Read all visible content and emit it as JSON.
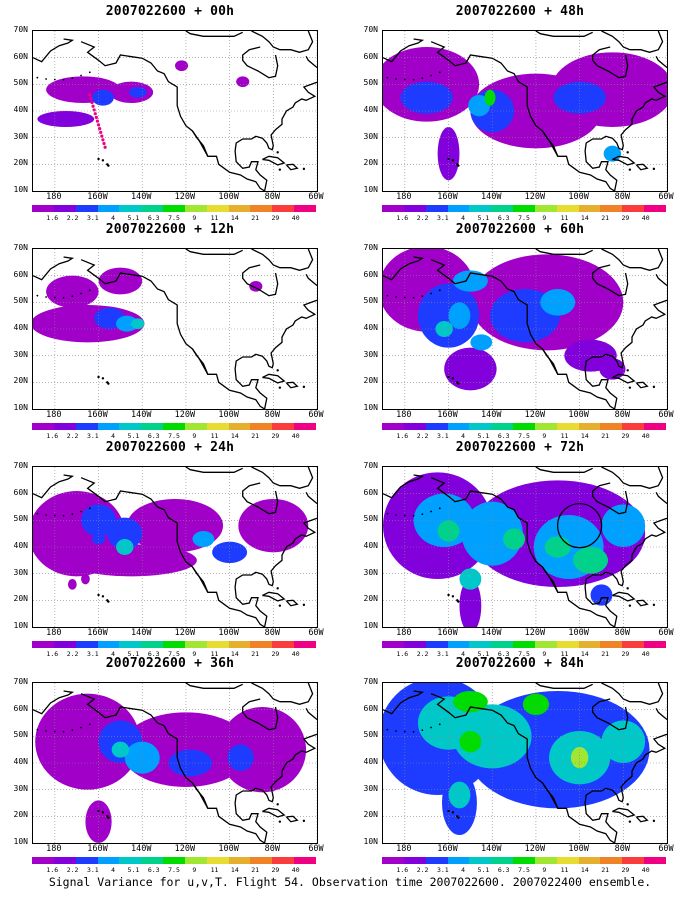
{
  "panels": [
    {
      "title": "2007022600 + 00h",
      "lead": 0
    },
    {
      "title": "2007022600 + 48h",
      "lead": 48
    },
    {
      "title": "2007022600 + 12h",
      "lead": 12
    },
    {
      "title": "2007022600 + 60h",
      "lead": 60
    },
    {
      "title": "2007022600 + 24h",
      "lead": 24
    },
    {
      "title": "2007022600 + 72h",
      "lead": 72
    },
    {
      "title": "2007022600 + 36h",
      "lead": 36
    },
    {
      "title": "2007022600 + 84h",
      "lead": 84
    }
  ],
  "lat_labels": [
    "70N",
    "60N",
    "50N",
    "40N",
    "30N",
    "20N",
    "10N"
  ],
  "lon_labels": [
    "180",
    "160W",
    "140W",
    "120W",
    "100W",
    "80W",
    "60W"
  ],
  "colorbar": {
    "labels": [
      "1.6",
      "2.2",
      "3.1",
      "4",
      "5.1",
      "6.3",
      "7.5",
      "9",
      "11",
      "14",
      "21",
      "29",
      "40"
    ],
    "colors": [
      "#a000c8",
      "#8200dc",
      "#1e3cff",
      "#00a0ff",
      "#00c8c8",
      "#00d28c",
      "#00dc00",
      "#a0e632",
      "#e6dc32",
      "#e6af2d",
      "#f08228",
      "#fa3c3c",
      "#f00082"
    ]
  },
  "caption": "Signal Variance for u,v,T. Flight 54. Observation time 2007022600. 2007022400 ensemble."
}
